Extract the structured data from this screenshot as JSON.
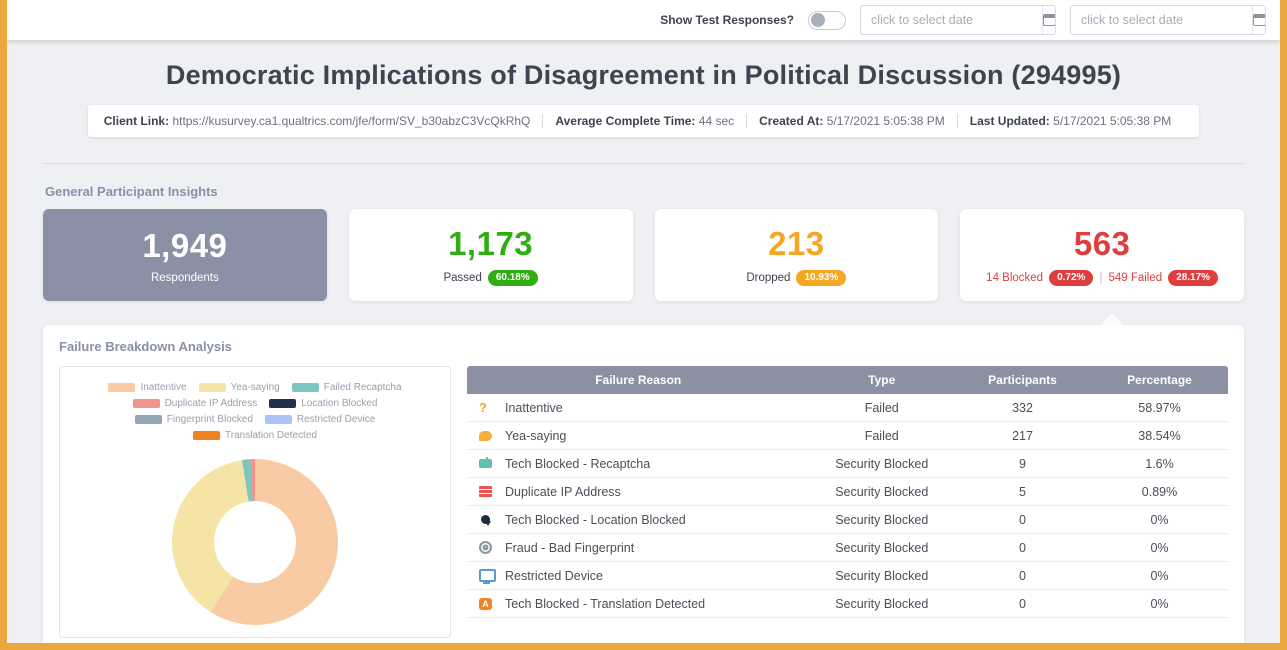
{
  "topbar": {
    "toggle_label": "Show Test Responses?",
    "date_from_placeholder": "click to select date",
    "date_to_placeholder": "click to select date"
  },
  "header": {
    "title": "Democratic Implications of Disagreement in Political Discussion (294995)",
    "meta": {
      "client_link_label": "Client Link:",
      "client_link": "https://kusurvey.ca1.qualtrics.com/jfe/form/SV_b30abzC3VcQkRhQ",
      "avg_time_label": "Average Complete Time:",
      "avg_time": "44 sec",
      "created_label": "Created At:",
      "created": "5/17/2021 5:05:38 PM",
      "updated_label": "Last Updated:",
      "updated": "5/17/2021 5:05:38 PM"
    }
  },
  "insights": {
    "section_title": "General Participant Insights",
    "cards": [
      {
        "value": "1,949",
        "label": "Respondents"
      },
      {
        "value": "1,173",
        "label": "Passed",
        "badge": "60.18%"
      },
      {
        "value": "213",
        "label": "Dropped",
        "badge": "10.93%"
      },
      {
        "value": "563",
        "blocked_label": "14 Blocked",
        "blocked_badge": "0.72%",
        "separator": "|",
        "failed_label": "549 Failed",
        "failed_badge": "28.17%"
      }
    ]
  },
  "failure": {
    "section_title": "Failure Breakdown Analysis",
    "table": {
      "headers": [
        "Failure Reason",
        "Type",
        "Participants",
        "Percentage"
      ],
      "rows": [
        {
          "icon": "question-mark-icon",
          "reason": "Inattentive",
          "type": "Failed",
          "participants": "332",
          "percentage": "58.97%"
        },
        {
          "icon": "speech-bubble-icon",
          "reason": "Yea-saying",
          "type": "Failed",
          "participants": "217",
          "percentage": "38.54%"
        },
        {
          "icon": "robot-icon",
          "reason": "Tech Blocked - Recaptcha",
          "type": "Security Blocked",
          "participants": "9",
          "percentage": "1.6%"
        },
        {
          "icon": "duplicate-ip-icon",
          "reason": "Duplicate IP Address",
          "type": "Security Blocked",
          "participants": "5",
          "percentage": "0.89%"
        },
        {
          "icon": "location-pin-icon",
          "reason": "Tech Blocked - Location Blocked",
          "type": "Security Blocked",
          "participants": "0",
          "percentage": "0%"
        },
        {
          "icon": "fingerprint-icon",
          "reason": "Fraud - Bad Fingerprint",
          "type": "Security Blocked",
          "participants": "0",
          "percentage": "0%"
        },
        {
          "icon": "monitor-icon",
          "reason": "Restricted Device",
          "type": "Security Blocked",
          "participants": "0",
          "percentage": "0%"
        },
        {
          "icon": "translation-icon",
          "reason": "Tech Blocked - Translation Detected",
          "type": "Security Blocked",
          "participants": "0",
          "percentage": "0%"
        }
      ]
    }
  },
  "chart_data": {
    "type": "pie",
    "donut": true,
    "title": "Failure Breakdown Analysis",
    "labels": [
      "Inattentive",
      "Yea-saying",
      "Failed Recaptcha",
      "Duplicate IP Address",
      "Location Blocked",
      "Fingerprint Blocked",
      "Restricted Device",
      "Translation Detected"
    ],
    "values": [
      58.97,
      38.54,
      1.6,
      0.89,
      0,
      0,
      0,
      0
    ],
    "counts": [
      332,
      217,
      9,
      5,
      0,
      0,
      0,
      0
    ],
    "colors": [
      "#f8cba4",
      "#f6e3a6",
      "#7cc7c0",
      "#f2938e",
      "#22304e",
      "#90a6b2",
      "#a9c4f5",
      "#f08223"
    ],
    "legend_position": "top"
  }
}
